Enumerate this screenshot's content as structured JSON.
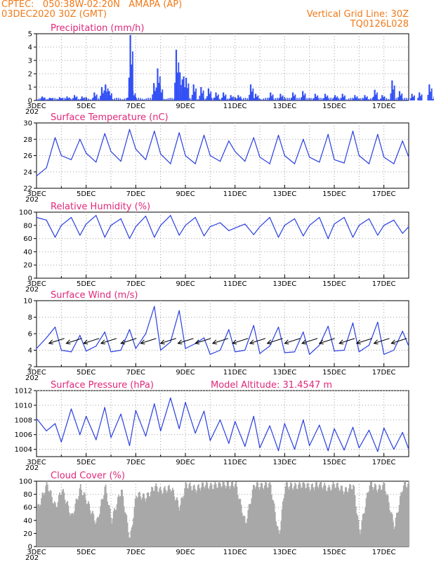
{
  "header": {
    "left_line1": "CPTEC:   050:38W-02:20N   AMAPA (AP)",
    "left_line2": "03DEC2020 30Z (GMT)",
    "right_line1": "Vertical Grid Line: 30Z",
    "right_line2": "TQ0126L028"
  },
  "x_labels": [
    "3DEC",
    "5DEC",
    "7DEC",
    "9DEC",
    "11DEC",
    "13DEC",
    "15DEC",
    "17DEC"
  ],
  "x_sub_label": "202",
  "model_altitude": "Model Altitude: 31.4547 m",
  "colors": {
    "line": "#2a3fe0",
    "bar": "#3350f5",
    "cloud": "#a8a8a8",
    "title": "#e0287a",
    "header": "#f07a1a",
    "grid": "#a0a0a0"
  },
  "chart_data": [
    {
      "id": "precip",
      "type": "bar",
      "title": "Precipitation (mm/h)",
      "ylim": [
        0,
        5
      ],
      "yticks": [
        "0",
        "1",
        "2",
        "3",
        "4",
        "5"
      ],
      "xrange_days": [
        0,
        15
      ],
      "spikes": [
        [
          0.2,
          0.3
        ],
        [
          0.5,
          0.2
        ],
        [
          0.9,
          0.25
        ],
        [
          1.2,
          0.3
        ],
        [
          1.5,
          0.4
        ],
        [
          1.8,
          0.3
        ],
        [
          2.3,
          0.6
        ],
        [
          2.6,
          1.0
        ],
        [
          2.75,
          1.2
        ],
        [
          2.9,
          0.7
        ],
        [
          3.7,
          0.6
        ],
        [
          3.75,
          4.9
        ],
        [
          3.85,
          0.7
        ],
        [
          4.7,
          1.3
        ],
        [
          4.85,
          2.4
        ],
        [
          4.95,
          1.1
        ],
        [
          5.6,
          3.8
        ],
        [
          5.75,
          2.1
        ],
        [
          5.9,
          1.8
        ],
        [
          6.0,
          1.7
        ],
        [
          6.3,
          1.2
        ],
        [
          6.6,
          1.0
        ],
        [
          6.9,
          0.9
        ],
        [
          7.2,
          0.6
        ],
        [
          7.5,
          0.6
        ],
        [
          7.8,
          0.4
        ],
        [
          8.1,
          0.4
        ],
        [
          8.6,
          1.2
        ],
        [
          8.8,
          0.5
        ],
        [
          9.4,
          0.6
        ],
        [
          9.8,
          0.5
        ],
        [
          10.3,
          0.6
        ],
        [
          10.7,
          0.7
        ],
        [
          11.2,
          0.5
        ],
        [
          11.6,
          0.5
        ],
        [
          12.0,
          0.4
        ],
        [
          12.3,
          0.5
        ],
        [
          12.8,
          0.4
        ],
        [
          13.2,
          0.4
        ],
        [
          13.6,
          0.8
        ],
        [
          13.9,
          0.4
        ],
        [
          14.3,
          1.5
        ],
        [
          14.6,
          0.7
        ],
        [
          15.1,
          0.5
        ],
        [
          15.4,
          0.6
        ],
        [
          15.8,
          1.2
        ],
        [
          16.0,
          0.3
        ]
      ]
    },
    {
      "id": "temp",
      "type": "line",
      "title": "Surface Temperature (nC)",
      "ylim": [
        22,
        30
      ],
      "yticks": [
        "22",
        "24",
        "26",
        "28",
        "30"
      ],
      "x": [
        0,
        0.4,
        0.75,
        1.0,
        1.4,
        1.75,
        2.0,
        2.4,
        2.75,
        3.0,
        3.4,
        3.75,
        4.0,
        4.4,
        4.75,
        5.0,
        5.4,
        5.75,
        6.0,
        6.4,
        6.75,
        7.0,
        7.4,
        7.75,
        8.0,
        8.4,
        8.75,
        9.0,
        9.4,
        9.75,
        10.0,
        10.4,
        10.75,
        11.0,
        11.4,
        11.75,
        12.0,
        12.4,
        12.75,
        13.0,
        13.4,
        13.75,
        14.0,
        14.4,
        14.75,
        15.0
      ],
      "y": [
        23.5,
        24.5,
        28.2,
        26.0,
        25.5,
        28.0,
        26.3,
        25.2,
        28.7,
        26.5,
        25.3,
        29.2,
        26.8,
        25.5,
        29.0,
        26.2,
        25.0,
        28.8,
        26.0,
        25.0,
        28.5,
        26.0,
        25.3,
        27.8,
        26.5,
        25.3,
        28.2,
        25.8,
        25.0,
        28.5,
        26.0,
        25.0,
        28.0,
        25.8,
        25.2,
        28.6,
        25.5,
        25.1,
        29.0,
        26.0,
        25.0,
        28.6,
        25.8,
        25.0,
        27.8,
        25.8
      ]
    },
    {
      "id": "rh",
      "type": "line",
      "title": "Relative Humidity (%)",
      "ylim": [
        0,
        100
      ],
      "yticks": [
        "0",
        "20",
        "40",
        "60",
        "80",
        "100"
      ],
      "x": [
        0,
        0.4,
        0.75,
        1.0,
        1.4,
        1.75,
        2.0,
        2.4,
        2.75,
        3.0,
        3.4,
        3.75,
        4.0,
        4.4,
        4.75,
        5.0,
        5.4,
        5.75,
        6.0,
        6.4,
        6.75,
        7.0,
        7.4,
        7.75,
        8.0,
        8.4,
        8.75,
        9.0,
        9.4,
        9.75,
        10.0,
        10.4,
        10.75,
        11.0,
        11.4,
        11.75,
        12.0,
        12.4,
        12.75,
        13.0,
        13.4,
        13.75,
        14.0,
        14.4,
        14.75,
        15.0
      ],
      "y": [
        92,
        88,
        62,
        80,
        92,
        65,
        82,
        95,
        62,
        80,
        90,
        60,
        78,
        94,
        62,
        80,
        95,
        65,
        80,
        92,
        64,
        78,
        84,
        72,
        76,
        82,
        66,
        78,
        92,
        62,
        80,
        90,
        64,
        80,
        92,
        60,
        82,
        92,
        62,
        80,
        90,
        65,
        80,
        88,
        68,
        78
      ]
    },
    {
      "id": "wind",
      "type": "line",
      "title": "Surface Wind (m/s)",
      "ylim": [
        2,
        10
      ],
      "yticks": [
        "2",
        "4",
        "6",
        "8",
        "10"
      ],
      "x": [
        0,
        0.4,
        0.75,
        1.0,
        1.4,
        1.75,
        2.0,
        2.4,
        2.75,
        3.0,
        3.4,
        3.75,
        4.0,
        4.4,
        4.75,
        5.0,
        5.4,
        5.75,
        6.0,
        6.4,
        6.75,
        7.0,
        7.4,
        7.75,
        8.0,
        8.4,
        8.75,
        9.0,
        9.4,
        9.75,
        10.0,
        10.4,
        10.75,
        11.0,
        11.4,
        11.75,
        12.0,
        12.4,
        12.75,
        13.0,
        13.4,
        13.75,
        14.0,
        14.4,
        14.75,
        15.0
      ],
      "y": [
        4.2,
        5.5,
        6.8,
        4.0,
        3.8,
        5.8,
        3.9,
        4.5,
        6.2,
        3.8,
        4.0,
        6.5,
        4.2,
        6.0,
        9.3,
        4.0,
        5.0,
        8.8,
        4.2,
        4.8,
        5.5,
        3.5,
        4.0,
        6.5,
        3.8,
        4.0,
        7.0,
        3.6,
        4.5,
        6.8,
        3.7,
        3.8,
        6.2,
        3.5,
        4.6,
        6.9,
        3.9,
        4.0,
        7.3,
        3.8,
        4.6,
        7.4,
        3.5,
        4.0,
        6.3,
        4.5
      ],
      "arrow_days": [
        0.5,
        1.2,
        1.9,
        2.6,
        3.4,
        4.2,
        5.0,
        5.7,
        6.4,
        7.1,
        7.9,
        8.6,
        9.3,
        10.0,
        10.7,
        11.4,
        12.2,
        12.9,
        13.6,
        14.3
      ]
    },
    {
      "id": "press",
      "type": "line",
      "title": "Surface Pressure (hPa)",
      "ylim": [
        1003,
        1012
      ],
      "yticks": [
        "1004",
        "1006",
        "1008",
        "1010",
        "1012"
      ],
      "x": [
        0,
        0.4,
        0.75,
        1.0,
        1.4,
        1.75,
        2.0,
        2.4,
        2.75,
        3.0,
        3.4,
        3.75,
        4.0,
        4.4,
        4.75,
        5.0,
        5.4,
        5.75,
        6.0,
        6.4,
        6.75,
        7.0,
        7.4,
        7.75,
        8.0,
        8.4,
        8.75,
        9.0,
        9.4,
        9.75,
        10.0,
        10.4,
        10.75,
        11.0,
        11.4,
        11.75,
        12.0,
        12.4,
        12.75,
        13.0,
        13.4,
        13.75,
        14.0,
        14.4,
        14.75,
        15.0
      ],
      "y": [
        1008.2,
        1006.5,
        1007.5,
        1005.0,
        1009.5,
        1006.0,
        1008.5,
        1005.3,
        1009.7,
        1005.6,
        1008.8,
        1004.5,
        1009.3,
        1005.8,
        1010.2,
        1006.5,
        1011.0,
        1006.8,
        1010.4,
        1006.2,
        1009.2,
        1005.2,
        1008.0,
        1004.8,
        1007.8,
        1004.4,
        1008.5,
        1004.2,
        1007.2,
        1003.8,
        1007.5,
        1004.0,
        1008.0,
        1004.5,
        1007.3,
        1003.8,
        1006.8,
        1003.9,
        1007.0,
        1004.2,
        1006.6,
        1003.7,
        1006.9,
        1004.0,
        1006.3,
        1004.0
      ]
    },
    {
      "id": "cloud",
      "type": "bar",
      "title": "Cloud Cover (%)",
      "ylim": [
        0,
        100
      ],
      "yticks": [
        "0",
        "20",
        "40",
        "60",
        "80",
        "100"
      ],
      "x": [
        0,
        0.4,
        0.75,
        1.0,
        1.4,
        1.75,
        2.0,
        2.4,
        2.75,
        3.0,
        3.4,
        3.75,
        4.0,
        4.4,
        4.75,
        5.0,
        5.4,
        5.75,
        6.0,
        6.4,
        6.75,
        7.0,
        7.4,
        7.75,
        8.0,
        8.4,
        8.75,
        9.0,
        9.4,
        9.75,
        10.0,
        10.4,
        10.75,
        11.0,
        11.4,
        11.75,
        12.0,
        12.4,
        12.75,
        13.0,
        13.4,
        13.75,
        14.0,
        14.4,
        14.75,
        15.0
      ],
      "y": [
        55,
        96,
        60,
        88,
        45,
        90,
        70,
        35,
        92,
        40,
        88,
        10,
        80,
        75,
        92,
        85,
        90,
        60,
        95,
        88,
        95,
        92,
        96,
        94,
        96,
        35,
        95,
        92,
        96,
        15,
        94,
        92,
        96,
        90,
        96,
        88,
        95,
        85,
        94,
        20,
        96,
        88,
        95,
        30,
        94,
        96
      ]
    }
  ]
}
